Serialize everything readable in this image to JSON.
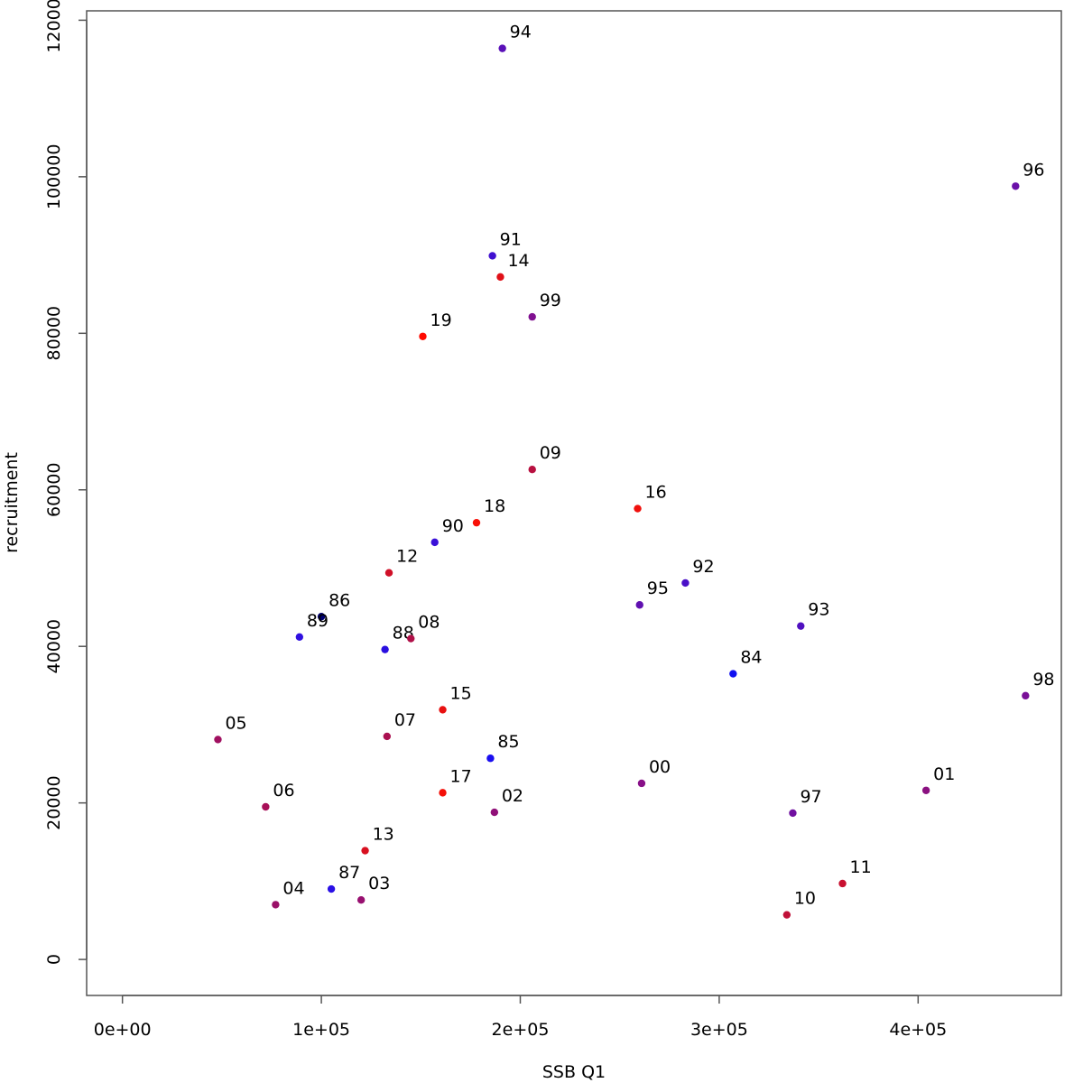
{
  "chart_data": {
    "type": "scatter",
    "title": "",
    "xlabel": "SSB Q1",
    "ylabel": "recruitment",
    "xlim": [
      -18000,
      472000
    ],
    "ylim": [
      -4600,
      121200
    ],
    "xticks": [
      0,
      100000,
      200000,
      300000,
      400000
    ],
    "xtick_labels": [
      "0e+00",
      "1e+05",
      "2e+05",
      "3e+05",
      "4e+05"
    ],
    "yticks": [
      0,
      20000,
      40000,
      60000,
      80000,
      100000,
      120000
    ],
    "ytick_labels": [
      "0",
      "20000",
      "40000",
      "60000",
      "80000",
      "100000",
      "120000"
    ],
    "grid": false,
    "legend": "none",
    "point_color_note_start": "#0000ff",
    "point_color_note_end": "#ff0000",
    "points": [
      {
        "label": "84",
        "x": 307000,
        "y": 36500,
        "color": "#1010f0"
      },
      {
        "label": "85",
        "x": 185000,
        "y": 25700,
        "color": "#1a0ef0"
      },
      {
        "label": "86",
        "x": 100000,
        "y": 43800,
        "color": "#000070"
      },
      {
        "label": "87",
        "x": 105000,
        "y": 9000,
        "color": "#2a10e6"
      },
      {
        "label": "88",
        "x": 132000,
        "y": 39600,
        "color": "#2a0fe0"
      },
      {
        "label": "89",
        "x": 89000,
        "y": 41200,
        "color": "#3010e0"
      },
      {
        "label": "90",
        "x": 157000,
        "y": 53300,
        "color": "#3a10d8"
      },
      {
        "label": "91",
        "x": 186000,
        "y": 89900,
        "color": "#4010d0"
      },
      {
        "label": "92",
        "x": 283000,
        "y": 48100,
        "color": "#4a10c8"
      },
      {
        "label": "93",
        "x": 341000,
        "y": 42600,
        "color": "#5010c0"
      },
      {
        "label": "94",
        "x": 191000,
        "y": 116400,
        "color": "#5a10b8"
      },
      {
        "label": "95",
        "x": 260000,
        "y": 45300,
        "color": "#6010b0"
      },
      {
        "label": "96",
        "x": 449000,
        "y": 98800,
        "color": "#6a10a8"
      },
      {
        "label": "97",
        "x": 337000,
        "y": 18700,
        "color": "#7010a0"
      },
      {
        "label": "98",
        "x": 454000,
        "y": 33700,
        "color": "#7a1098"
      },
      {
        "label": "99",
        "x": 206000,
        "y": 82100,
        "color": "#801090"
      },
      {
        "label": "00",
        "x": 261000,
        "y": 22500,
        "color": "#881088"
      },
      {
        "label": "01",
        "x": 404000,
        "y": 21600,
        "color": "#8a1080"
      },
      {
        "label": "02",
        "x": 187000,
        "y": 18800,
        "color": "#901078"
      },
      {
        "label": "03",
        "x": 120000,
        "y": 7600,
        "color": "#981070"
      },
      {
        "label": "04",
        "x": 77000,
        "y": 7000,
        "color": "#9a1068"
      },
      {
        "label": "05",
        "x": 48000,
        "y": 28100,
        "color": "#a01060"
      },
      {
        "label": "06",
        "x": 72000,
        "y": 19500,
        "color": "#a81058"
      },
      {
        "label": "07",
        "x": 133000,
        "y": 28500,
        "color": "#aa1050"
      },
      {
        "label": "08",
        "x": 145000,
        "y": 41000,
        "color": "#b01048"
      },
      {
        "label": "09",
        "x": 206000,
        "y": 62600,
        "color": "#b81040"
      },
      {
        "label": "10",
        "x": 334000,
        "y": 5700,
        "color": "#c01038"
      },
      {
        "label": "11",
        "x": 362000,
        "y": 9700,
        "color": "#c81030"
      },
      {
        "label": "12",
        "x": 134000,
        "y": 49400,
        "color": "#d01028"
      },
      {
        "label": "13",
        "x": 122000,
        "y": 13900,
        "color": "#d81020"
      },
      {
        "label": "14",
        "x": 190000,
        "y": 87200,
        "color": "#e01018"
      },
      {
        "label": "15",
        "x": 161000,
        "y": 31900,
        "color": "#e81010"
      },
      {
        "label": "16",
        "x": 259000,
        "y": 57600,
        "color": "#f0100c"
      },
      {
        "label": "17",
        "x": 161000,
        "y": 21300,
        "color": "#f41008"
      },
      {
        "label": "18",
        "x": 178000,
        "y": 55800,
        "color": "#f81008"
      },
      {
        "label": "19",
        "x": 151000,
        "y": 79600,
        "color": "#ff0a00"
      }
    ]
  }
}
